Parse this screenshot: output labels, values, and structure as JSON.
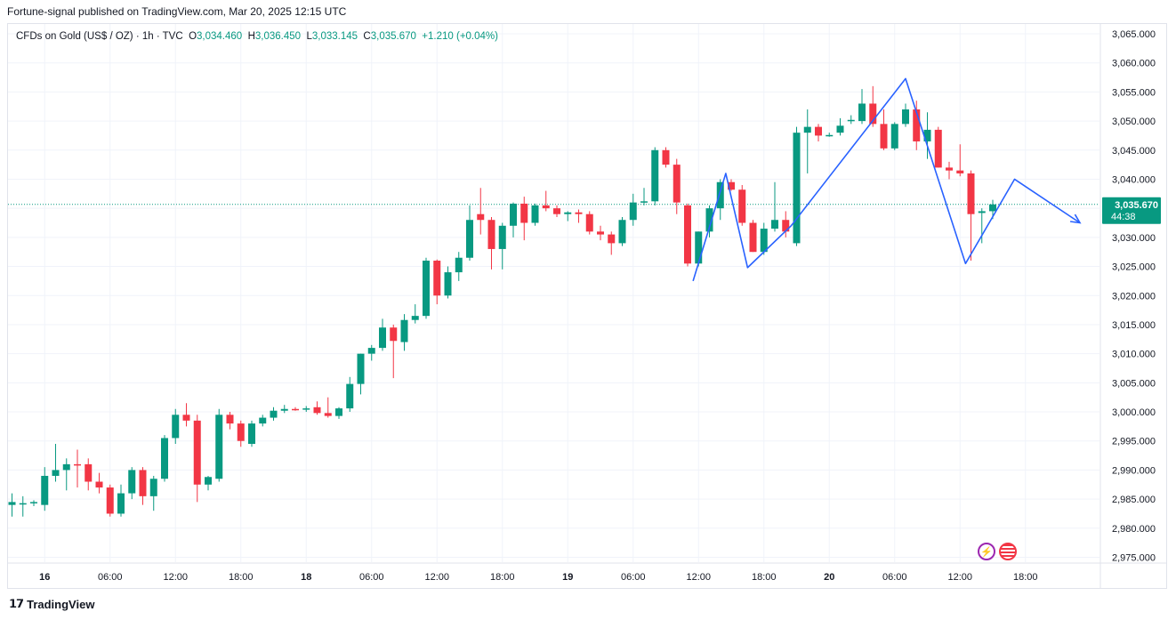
{
  "attribution": "Fortune-signal published on TradingView.com, Mar 20, 2025 12:15 UTC",
  "legend": {
    "symbol": "CFDs on Gold (US$ / OZ) · 1h · TVC",
    "open_label": "O",
    "open": "3,034.460",
    "high_label": "H",
    "high": "3,036.450",
    "low_label": "L",
    "low": "3,033.145",
    "close_label": "C",
    "close": "3,035.670",
    "change": "+1.210 (+0.04%)"
  },
  "price_label": {
    "value": "3,035.670",
    "countdown": "44:38"
  },
  "footer": {
    "brand": "TradingView",
    "logo_icon": "tradingview-logo-icon"
  },
  "icons": [
    "lightning-icon",
    "us-flag-icon"
  ],
  "colors": {
    "up": "#089981",
    "down": "#f23645",
    "drawing": "#2962ff",
    "price_line": "#089981",
    "grid": "#f0f3fa"
  },
  "chart_data": {
    "type": "candlestick",
    "timeframe": "1h",
    "ylim": [
      2972.5,
      3067.5
    ],
    "y_ticks": [
      "3,065.000",
      "3,060.000",
      "3,055.000",
      "3,050.000",
      "3,045.000",
      "3,040.000",
      "3,035.000",
      "3,030.000",
      "3,025.000",
      "3,020.000",
      "3,015.000",
      "3,010.000",
      "3,005.000",
      "3,000.000",
      "2,995.000",
      "2,990.000",
      "2,985.000",
      "2,980.000",
      "2,975.000"
    ],
    "y_tick_values": [
      3065,
      3060,
      3055,
      3050,
      3045,
      3040,
      3035,
      3030,
      3025,
      3020,
      3015,
      3010,
      3005,
      3000,
      2995,
      2990,
      2985,
      2980,
      2975
    ],
    "x_ticks": [
      {
        "label": "16",
        "bold": true,
        "bar": 3
      },
      {
        "label": "06:00",
        "bold": false,
        "bar": 9
      },
      {
        "label": "12:00",
        "bold": false,
        "bar": 15
      },
      {
        "label": "18:00",
        "bold": false,
        "bar": 21
      },
      {
        "label": "18",
        "bold": true,
        "bar": 27
      },
      {
        "label": "06:00",
        "bold": false,
        "bar": 33
      },
      {
        "label": "12:00",
        "bold": false,
        "bar": 39
      },
      {
        "label": "18:00",
        "bold": false,
        "bar": 45
      },
      {
        "label": "19",
        "bold": true,
        "bar": 51
      },
      {
        "label": "06:00",
        "bold": false,
        "bar": 57
      },
      {
        "label": "12:00",
        "bold": false,
        "bar": 63
      },
      {
        "label": "18:00",
        "bold": false,
        "bar": 69
      },
      {
        "label": "20",
        "bold": true,
        "bar": 75
      },
      {
        "label": "06:00",
        "bold": false,
        "bar": 81
      },
      {
        "label": "12:00",
        "bold": false,
        "bar": 87
      },
      {
        "label": "18:00",
        "bold": false,
        "bar": 93
      }
    ],
    "candles": [
      {
        "o": 2984.0,
        "h": 2986.0,
        "l": 2982.0,
        "c": 2984.5
      },
      {
        "o": 2984.3,
        "h": 2985.5,
        "l": 2982.0,
        "c": 2984.3
      },
      {
        "o": 2984.3,
        "h": 2984.8,
        "l": 2983.8,
        "c": 2984.5
      },
      {
        "o": 2984.0,
        "h": 2990.5,
        "l": 2983.0,
        "c": 2989.0
      },
      {
        "o": 2989.0,
        "h": 2994.5,
        "l": 2988.0,
        "c": 2990.0
      },
      {
        "o": 2990.0,
        "h": 2992.0,
        "l": 2986.5,
        "c": 2991.0
      },
      {
        "o": 2991.0,
        "h": 2993.5,
        "l": 2987.0,
        "c": 2990.8
      },
      {
        "o": 2991.0,
        "h": 2992.0,
        "l": 2986.5,
        "c": 2988.0
      },
      {
        "o": 2988.0,
        "h": 2989.5,
        "l": 2986.0,
        "c": 2987.0
      },
      {
        "o": 2987.0,
        "h": 2987.5,
        "l": 2982.0,
        "c": 2982.5
      },
      {
        "o": 2982.5,
        "h": 2987.5,
        "l": 2982.0,
        "c": 2986.0
      },
      {
        "o": 2986.0,
        "h": 2990.5,
        "l": 2985.0,
        "c": 2990.0
      },
      {
        "o": 2990.0,
        "h": 2990.5,
        "l": 2984.0,
        "c": 2985.5
      },
      {
        "o": 2985.5,
        "h": 2989.0,
        "l": 2983.0,
        "c": 2988.5
      },
      {
        "o": 2988.5,
        "h": 2996.0,
        "l": 2988.0,
        "c": 2995.5
      },
      {
        "o": 2995.5,
        "h": 3000.5,
        "l": 2994.5,
        "c": 2999.5
      },
      {
        "o": 2999.5,
        "h": 3001.5,
        "l": 2997.5,
        "c": 2998.5
      },
      {
        "o": 2998.5,
        "h": 2999.5,
        "l": 2984.5,
        "c": 2987.5
      },
      {
        "o": 2987.5,
        "h": 2989.0,
        "l": 2986.5,
        "c": 2988.8
      },
      {
        "o": 2988.5,
        "h": 3000.5,
        "l": 2988.0,
        "c": 2999.5
      },
      {
        "o": 2999.5,
        "h": 3000.0,
        "l": 2997.0,
        "c": 2998.0
      },
      {
        "o": 2998.0,
        "h": 2998.5,
        "l": 2994.0,
        "c": 2995.0
      },
      {
        "o": 2994.5,
        "h": 2998.5,
        "l": 2994.0,
        "c": 2998.0
      },
      {
        "o": 2998.0,
        "h": 2999.5,
        "l": 2997.5,
        "c": 2999.0
      },
      {
        "o": 2999.0,
        "h": 3000.8,
        "l": 2998.5,
        "c": 3000.2
      },
      {
        "o": 3000.2,
        "h": 3001.2,
        "l": 2999.8,
        "c": 3000.5
      },
      {
        "o": 3000.5,
        "h": 3000.8,
        "l": 3000.2,
        "c": 3000.4
      },
      {
        "o": 3000.4,
        "h": 3001.0,
        "l": 3000.0,
        "c": 3000.6
      },
      {
        "o": 3000.8,
        "h": 3001.8,
        "l": 2999.5,
        "c": 2999.8
      },
      {
        "o": 2999.8,
        "h": 3002.5,
        "l": 2999.0,
        "c": 2999.3
      },
      {
        "o": 2999.3,
        "h": 3000.8,
        "l": 2998.8,
        "c": 3000.6
      },
      {
        "o": 3000.6,
        "h": 3006.0,
        "l": 3000.0,
        "c": 3004.8
      },
      {
        "o": 3004.8,
        "h": 3010.0,
        "l": 3003.0,
        "c": 3010.0
      },
      {
        "o": 3010.0,
        "h": 3011.5,
        "l": 3008.8,
        "c": 3011.0
      },
      {
        "o": 3011.0,
        "h": 3016.0,
        "l": 3010.5,
        "c": 3014.5
      },
      {
        "o": 3014.5,
        "h": 3015.0,
        "l": 3005.8,
        "c": 3012.2
      },
      {
        "o": 3012.0,
        "h": 3016.8,
        "l": 3010.5,
        "c": 3015.8
      },
      {
        "o": 3015.8,
        "h": 3018.5,
        "l": 3015.2,
        "c": 3016.5
      },
      {
        "o": 3016.5,
        "h": 3026.5,
        "l": 3016.0,
        "c": 3026.0
      },
      {
        "o": 3026.0,
        "h": 3026.2,
        "l": 3018.5,
        "c": 3020.0
      },
      {
        "o": 3020.0,
        "h": 3025.0,
        "l": 3019.5,
        "c": 3024.0
      },
      {
        "o": 3024.0,
        "h": 3027.5,
        "l": 3022.5,
        "c": 3026.5
      },
      {
        "o": 3026.5,
        "h": 3035.5,
        "l": 3026.0,
        "c": 3033.0
      },
      {
        "o": 3034.0,
        "h": 3038.5,
        "l": 3030.5,
        "c": 3033.0
      },
      {
        "o": 3033.0,
        "h": 3033.5,
        "l": 3024.5,
        "c": 3028.0
      },
      {
        "o": 3028.0,
        "h": 3032.5,
        "l": 3024.5,
        "c": 3032.0
      },
      {
        "o": 3032.0,
        "h": 3036.0,
        "l": 3030.0,
        "c": 3035.8
      },
      {
        "o": 3035.8,
        "h": 3037.0,
        "l": 3029.5,
        "c": 3032.5
      },
      {
        "o": 3032.5,
        "h": 3035.8,
        "l": 3032.0,
        "c": 3035.5
      },
      {
        "o": 3035.5,
        "h": 3038.0,
        "l": 3034.5,
        "c": 3035.0
      },
      {
        "o": 3035.0,
        "h": 3035.5,
        "l": 3033.5,
        "c": 3034.0
      },
      {
        "o": 3034.0,
        "h": 3034.5,
        "l": 3032.8,
        "c": 3034.3
      },
      {
        "o": 3034.3,
        "h": 3034.8,
        "l": 3032.5,
        "c": 3034.0
      },
      {
        "o": 3034.0,
        "h": 3034.5,
        "l": 3030.5,
        "c": 3031.0
      },
      {
        "o": 3031.0,
        "h": 3032.0,
        "l": 3029.5,
        "c": 3030.5
      },
      {
        "o": 3030.5,
        "h": 3031.0,
        "l": 3027.0,
        "c": 3029.0
      },
      {
        "o": 3029.0,
        "h": 3033.5,
        "l": 3028.5,
        "c": 3033.0
      },
      {
        "o": 3033.0,
        "h": 3037.5,
        "l": 3032.0,
        "c": 3036.0
      },
      {
        "o": 3036.0,
        "h": 3038.5,
        "l": 3035.5,
        "c": 3036.2
      },
      {
        "o": 3036.2,
        "h": 3045.5,
        "l": 3035.5,
        "c": 3045.0
      },
      {
        "o": 3045.0,
        "h": 3045.5,
        "l": 3042.0,
        "c": 3042.5
      },
      {
        "o": 3042.5,
        "h": 3043.5,
        "l": 3034.0,
        "c": 3036.0
      },
      {
        "o": 3035.5,
        "h": 3035.8,
        "l": 3025.0,
        "c": 3025.5
      },
      {
        "o": 3025.5,
        "h": 3031.0,
        "l": 3025.0,
        "c": 3031.0
      },
      {
        "o": 3031.0,
        "h": 3035.5,
        "l": 3030.0,
        "c": 3035.0
      },
      {
        "o": 3035.0,
        "h": 3040.0,
        "l": 3033.0,
        "c": 3039.5
      },
      {
        "o": 3039.5,
        "h": 3040.0,
        "l": 3038.0,
        "c": 3038.2
      },
      {
        "o": 3038.2,
        "h": 3039.0,
        "l": 3032.0,
        "c": 3032.5
      },
      {
        "o": 3032.5,
        "h": 3033.0,
        "l": 3027.5,
        "c": 3027.5
      },
      {
        "o": 3027.5,
        "h": 3032.5,
        "l": 3027.0,
        "c": 3031.5
      },
      {
        "o": 3031.5,
        "h": 3039.5,
        "l": 3031.0,
        "c": 3033.0
      },
      {
        "o": 3033.0,
        "h": 3034.5,
        "l": 3030.0,
        "c": 3031.0
      },
      {
        "o": 3029.0,
        "h": 3049.0,
        "l": 3028.5,
        "c": 3048.0
      },
      {
        "o": 3048.0,
        "h": 3052.0,
        "l": 3041.0,
        "c": 3049.0
      },
      {
        "o": 3049.0,
        "h": 3049.5,
        "l": 3046.5,
        "c": 3047.5
      },
      {
        "o": 3047.5,
        "h": 3048.0,
        "l": 3047.3,
        "c": 3047.6
      },
      {
        "o": 3048.0,
        "h": 3050.5,
        "l": 3047.5,
        "c": 3049.2
      },
      {
        "o": 3050.0,
        "h": 3051.0,
        "l": 3049.5,
        "c": 3050.2
      },
      {
        "o": 3050.0,
        "h": 3055.5,
        "l": 3049.5,
        "c": 3053.0
      },
      {
        "o": 3053.0,
        "h": 3056.0,
        "l": 3049.0,
        "c": 3049.5
      },
      {
        "o": 3049.5,
        "h": 3052.0,
        "l": 3045.0,
        "c": 3045.3
      },
      {
        "o": 3045.3,
        "h": 3049.8,
        "l": 3045.0,
        "c": 3049.5
      },
      {
        "o": 3049.5,
        "h": 3053.0,
        "l": 3049.0,
        "c": 3052.0
      },
      {
        "o": 3052.0,
        "h": 3053.5,
        "l": 3045.0,
        "c": 3046.5
      },
      {
        "o": 3046.5,
        "h": 3051.5,
        "l": 3043.5,
        "c": 3048.5
      },
      {
        "o": 3048.5,
        "h": 3049.0,
        "l": 3042.0,
        "c": 3042.0
      },
      {
        "o": 3042.0,
        "h": 3043.0,
        "l": 3040.0,
        "c": 3041.5
      },
      {
        "o": 3041.5,
        "h": 3046.0,
        "l": 3040.5,
        "c": 3041.0
      },
      {
        "o": 3041.0,
        "h": 3041.5,
        "l": 3026.0,
        "c": 3034.0
      },
      {
        "o": 3034.2,
        "h": 3035.0,
        "l": 3029.0,
        "c": 3034.5
      },
      {
        "o": 3034.5,
        "h": 3036.45,
        "l": 3033.145,
        "c": 3035.67
      }
    ],
    "current_price": 3035.67,
    "drawing": {
      "type": "zigzag-projection",
      "points": [
        {
          "bar": 62.5,
          "price": 3022.5
        },
        {
          "bar": 65.5,
          "price": 3041.0
        },
        {
          "bar": 67.5,
          "price": 3024.8
        },
        {
          "bar": 71.5,
          "price": 3032.0
        },
        {
          "bar": 82.0,
          "price": 3057.3
        },
        {
          "bar": 87.5,
          "price": 3025.5
        },
        {
          "bar": 92.0,
          "price": 3040.0
        },
        {
          "bar": 98.0,
          "price": 3032.5
        }
      ]
    }
  }
}
